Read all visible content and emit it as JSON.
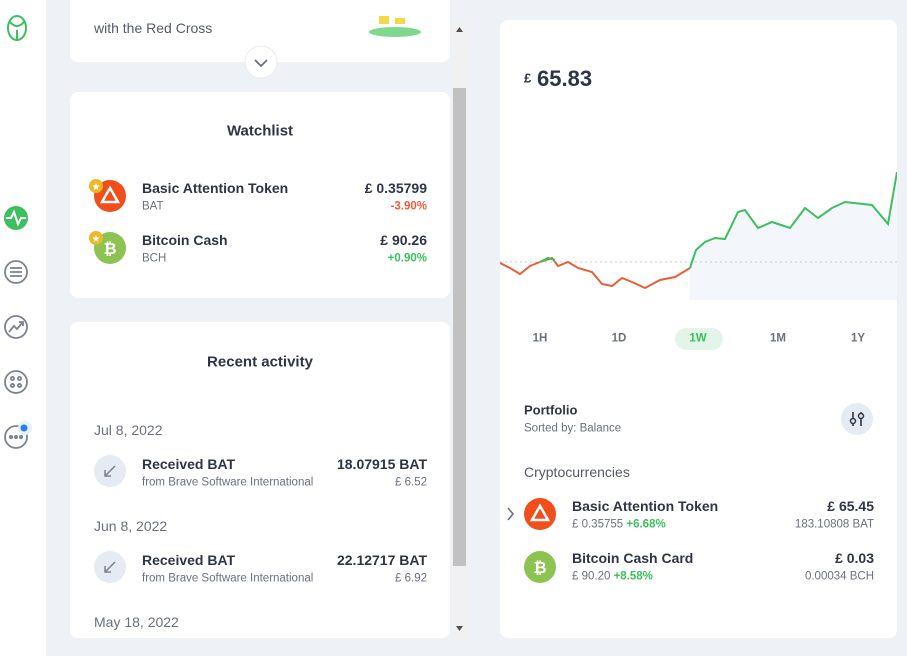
{
  "promo": {
    "text": "with the Red Cross"
  },
  "watchlist": {
    "title": "Watchlist",
    "items": [
      {
        "name": "Basic Attention Token",
        "ticker": "BAT",
        "price": "£ 0.35799",
        "change": "-3.90%"
      },
      {
        "name": "Bitcoin Cash",
        "ticker": "BCH",
        "price": "£ 90.26",
        "change": "+0.90%"
      }
    ]
  },
  "recent_activity": {
    "title": "Recent activity",
    "groups": [
      {
        "date": "Jul 8, 2022",
        "items": [
          {
            "title": "Received BAT",
            "source": "from Brave Software International",
            "amount": "18.07915 BAT",
            "fiat": "£ 6.52"
          }
        ]
      },
      {
        "date": "Jun 8, 2022",
        "items": [
          {
            "title": "Received BAT",
            "source": "from Brave Software International",
            "amount": "22.12717 BAT",
            "fiat": "£ 6.92"
          }
        ]
      },
      {
        "date": "May 18, 2022"
      }
    ]
  },
  "balance": {
    "currency": "£",
    "amount": "65.83"
  },
  "timeframes": {
    "options": [
      "1H",
      "1D",
      "1W",
      "1M",
      "1Y"
    ],
    "active": "1W"
  },
  "portfolio": {
    "title": "Portfolio",
    "sort": "Sorted by: Balance",
    "section": "Cryptocurrencies",
    "holdings": [
      {
        "name": "Basic Attention Token",
        "price": "£ 0.35755",
        "change": "+6.68%",
        "value": "£ 65.45",
        "amount": "183.10808 BAT"
      },
      {
        "name": "Bitcoin Cash Card",
        "price": "£ 90.20",
        "change": "+8.58%",
        "value": "£ 0.03",
        "amount": "0.00034 BCH"
      }
    ]
  }
}
